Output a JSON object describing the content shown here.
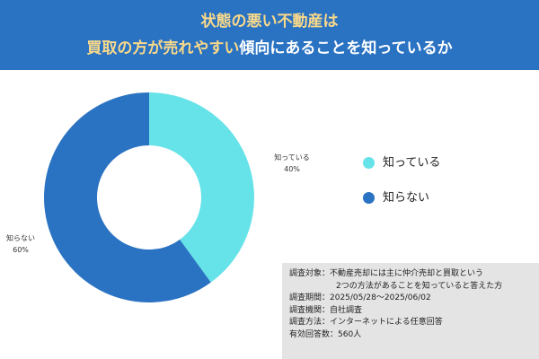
{
  "header": {
    "line1": "状態の悪い不動産は",
    "line2_highlight": "買取の方が売れやすい",
    "line2_rest": "傾向にあることを知っているか",
    "background": "#2a72c2",
    "highlight_color": "#f9d98a"
  },
  "chart_data": {
    "type": "pie",
    "donut": true,
    "labels": [
      "知っている",
      "知らない"
    ],
    "values": [
      40,
      60
    ],
    "value_labels": [
      "40%",
      "60%"
    ],
    "colors": [
      "#66e3e8",
      "#2a72c2"
    ]
  },
  "legend": {
    "placement": "right",
    "items": [
      {
        "label": "知っている",
        "color": "#66e3e8"
      },
      {
        "label": "知らない",
        "color": "#2a72c2"
      }
    ]
  },
  "survey_note": {
    "target_label": "調査対象：",
    "target_line1": "不動産売却には主に仲介売却と買取という",
    "target_line2": "2つの方法があることを知っていると答えた方",
    "period": "調査期間：2025/05/28～2025/06/02",
    "organization": "調査機関：自社調査",
    "method": "調査方法：インターネットによる任意回答",
    "respondents": "有効回答数：560人",
    "background": "#e4e4e4"
  }
}
